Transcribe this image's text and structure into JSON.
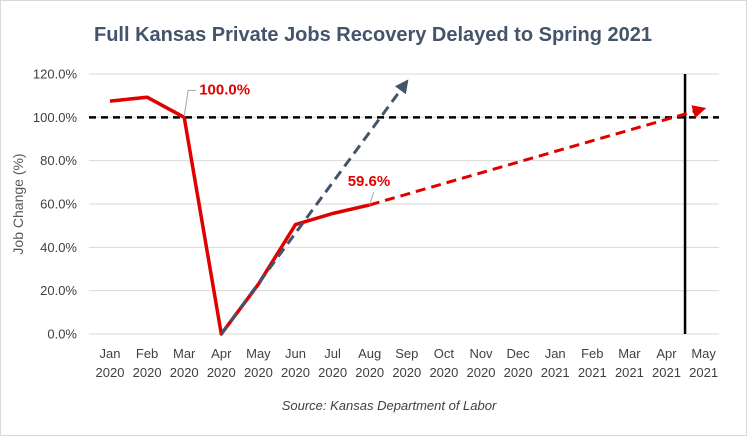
{
  "chart_data": {
    "type": "line",
    "title": "Full Kansas Private Jobs Recovery Delayed to Spring 2021",
    "ylabel": "Job Change (%)",
    "xlabel": "",
    "source": "Source: Kansas Department of Labor",
    "ylim": [
      0,
      120
    ],
    "ytick_values": [
      0,
      20,
      40,
      60,
      80,
      100,
      120
    ],
    "ytick_labels": [
      "0.0%",
      "20.0%",
      "40.0%",
      "60.0%",
      "80.0%",
      "100.0%",
      "120.0%"
    ],
    "grid": true,
    "categories": [
      {
        "month": "Jan",
        "year": "2020"
      },
      {
        "month": "Feb",
        "year": "2020"
      },
      {
        "month": "Mar",
        "year": "2020"
      },
      {
        "month": "Apr",
        "year": "2020"
      },
      {
        "month": "May",
        "year": "2020"
      },
      {
        "month": "Jun",
        "year": "2020"
      },
      {
        "month": "Jul",
        "year": "2020"
      },
      {
        "month": "Aug",
        "year": "2020"
      },
      {
        "month": "Sep",
        "year": "2020"
      },
      {
        "month": "Oct",
        "year": "2020"
      },
      {
        "month": "Nov",
        "year": "2020"
      },
      {
        "month": "Dec",
        "year": "2020"
      },
      {
        "month": "Jan",
        "year": "2021"
      },
      {
        "month": "Feb",
        "year": "2021"
      },
      {
        "month": "Mar",
        "year": "2021"
      },
      {
        "month": "Apr",
        "year": "2021"
      },
      {
        "month": "May",
        "year": "2021"
      }
    ],
    "series": [
      {
        "style": "solid",
        "color": "#e00000",
        "points": [
          {
            "x": "Jan 2020",
            "y": 107.5
          },
          {
            "x": "Feb 2020",
            "y": 109.3
          },
          {
            "x": "Mar 2020",
            "y": 100.0
          },
          {
            "x": "Apr 2020",
            "y": 0.0
          },
          {
            "x": "May 2020",
            "y": 23.0
          },
          {
            "x": "Jun 2020",
            "y": 50.5
          },
          {
            "x": "Jul 2020",
            "y": 55.6
          },
          {
            "x": "Aug 2020",
            "y": 59.6
          }
        ]
      },
      {
        "style": "dashed",
        "color": "#e00000",
        "arrow": true,
        "points": [
          {
            "x": "Aug 2020",
            "y": 59.6
          },
          {
            "x": "May 2021",
            "y": 104.0
          }
        ]
      },
      {
        "style": "dashed",
        "color": "#44546a",
        "arrow": true,
        "points": [
          {
            "x": "Apr 2020",
            "y": 0.0
          },
          {
            "x": "Sep 2020",
            "y": 116.5
          }
        ]
      }
    ],
    "reference_lines": [
      {
        "orientation": "horizontal",
        "y": 100.0,
        "style": "dashed",
        "color": "#000000"
      },
      {
        "orientation": "vertical",
        "x": "Apr-May 2021",
        "style": "solid",
        "color": "#000000"
      }
    ],
    "annotations": [
      {
        "text": "100.0%",
        "x": "Mar 2020",
        "y": 100.0,
        "color": "#e00000"
      },
      {
        "text": "59.6%",
        "x": "Aug 2020",
        "y": 59.6,
        "color": "#e00000"
      }
    ]
  }
}
